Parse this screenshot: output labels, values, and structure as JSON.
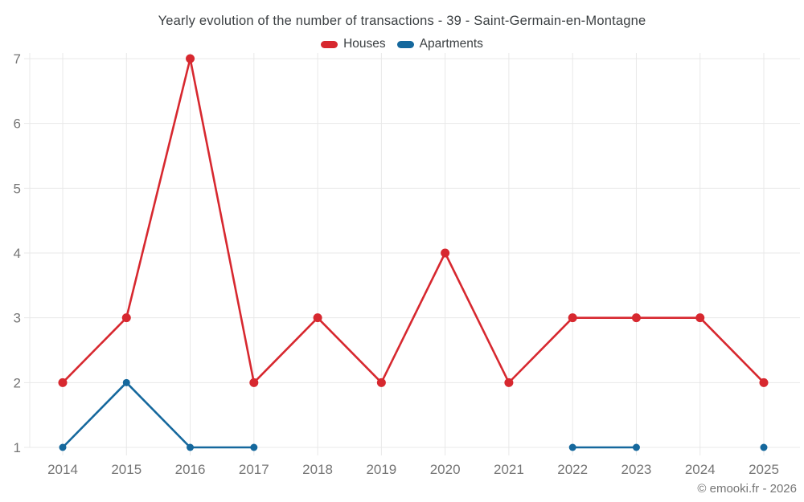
{
  "footer": {
    "copyright": "© emooki.fr - 2026"
  },
  "chart_data": {
    "type": "line",
    "title": "Yearly evolution of the number of transactions - 39 - Saint-Germain-en-Montagne",
    "categories": [
      "2014",
      "2015",
      "2016",
      "2017",
      "2018",
      "2019",
      "2020",
      "2021",
      "2022",
      "2023",
      "2024",
      "2025"
    ],
    "series": [
      {
        "name": "Houses",
        "color": "#d7282f",
        "values": [
          2,
          3,
          7,
          2,
          3,
          2,
          4,
          2,
          3,
          3,
          3,
          2
        ]
      },
      {
        "name": "Apartments",
        "color": "#15689d",
        "values": [
          1,
          2,
          1,
          1,
          null,
          null,
          null,
          null,
          1,
          1,
          null,
          1
        ]
      }
    ],
    "xlabel": "",
    "ylabel": "",
    "ylim": [
      1,
      7
    ],
    "yticks": [
      1,
      2,
      3,
      4,
      5,
      6,
      7
    ],
    "grid": true,
    "legend_position": "top",
    "grid_color": "#e8e8e8",
    "axis_label_color": "#757575"
  }
}
